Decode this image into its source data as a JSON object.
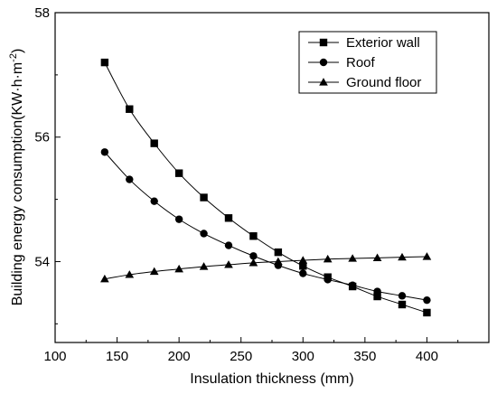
{
  "chart_data": {
    "type": "line",
    "xlabel": "Insulation thickness (mm)",
    "ylabel_main": "Building energy consumption(KW·h·m",
    "ylabel_sup": "-2",
    "ylabel_close": ")",
    "xlim": [
      100,
      450
    ],
    "ylim": [
      52.7,
      58
    ],
    "xticks": [
      100,
      150,
      200,
      250,
      300,
      350,
      400
    ],
    "xtick_labels": [
      "100",
      "150",
      "200",
      "250",
      "300",
      "350",
      "400"
    ],
    "yticks": [
      54,
      56,
      58
    ],
    "ytick_labels": [
      "54",
      "56",
      "58"
    ],
    "grid": false,
    "legend_position": "top-right",
    "x": [
      140,
      160,
      180,
      200,
      220,
      240,
      260,
      280,
      300,
      320,
      340,
      360,
      380,
      400
    ],
    "series": [
      {
        "name": "Exterior wall",
        "marker": "square",
        "values": [
          57.2,
          56.45,
          55.9,
          55.42,
          55.03,
          54.7,
          54.41,
          54.15,
          53.93,
          53.75,
          53.6,
          53.44,
          53.31,
          53.18
        ]
      },
      {
        "name": "Roof",
        "marker": "circle",
        "values": [
          55.76,
          55.32,
          54.97,
          54.68,
          54.45,
          54.26,
          54.09,
          53.94,
          53.81,
          53.71,
          53.62,
          53.52,
          53.45,
          53.38
        ]
      },
      {
        "name": "Ground floor",
        "marker": "triangle",
        "values": [
          53.72,
          53.79,
          53.84,
          53.88,
          53.92,
          53.95,
          53.98,
          54.0,
          54.02,
          54.04,
          54.05,
          54.06,
          54.07,
          54.08
        ]
      }
    ]
  },
  "colors": {
    "line": "#000000",
    "background": "#ffffff"
  }
}
